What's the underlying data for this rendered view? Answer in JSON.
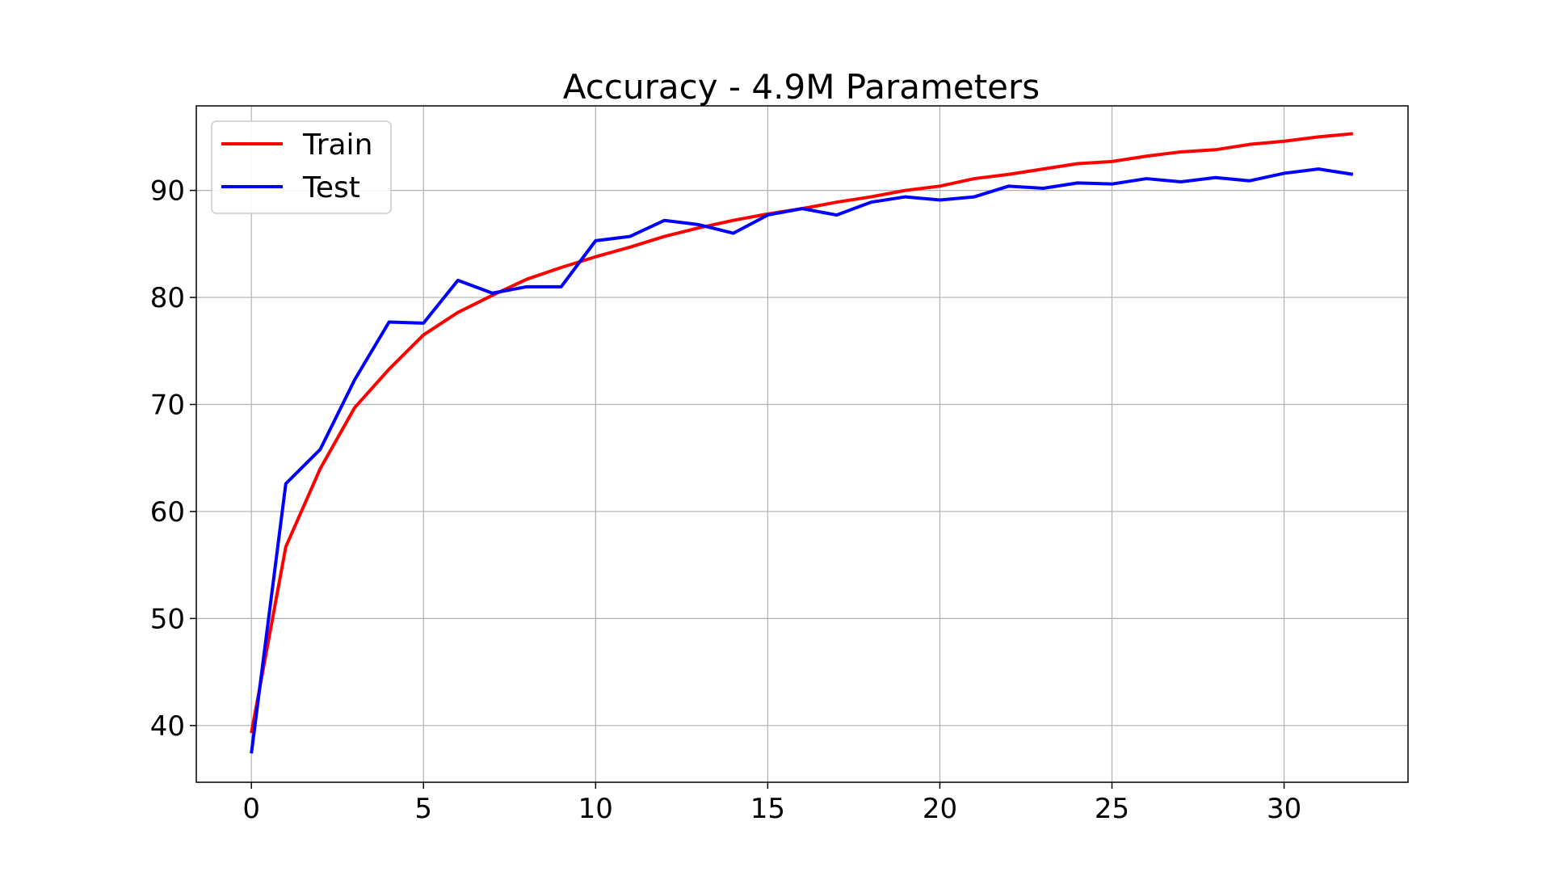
{
  "chart_data": {
    "type": "line",
    "title": "Accuracy - 4.9M Parameters",
    "xlabel": "",
    "ylabel": "",
    "xlim": [
      -1.6,
      33.6
    ],
    "ylim": [
      34.7,
      97.9
    ],
    "xticks": [
      0,
      5,
      10,
      15,
      20,
      25,
      30
    ],
    "yticks": [
      40,
      50,
      60,
      70,
      80,
      90
    ],
    "grid": true,
    "legend": "top-left",
    "x": [
      0,
      1,
      2,
      3,
      4,
      5,
      6,
      7,
      8,
      9,
      10,
      11,
      12,
      13,
      14,
      15,
      16,
      17,
      18,
      19,
      20,
      21,
      22,
      23,
      24,
      25,
      26,
      27,
      28,
      29,
      30,
      31,
      32
    ],
    "series": [
      {
        "name": "Train",
        "color": "#ff0000",
        "values": [
          39.3,
          56.7,
          64.0,
          69.7,
          73.3,
          76.5,
          78.6,
          80.2,
          81.7,
          82.8,
          83.8,
          84.7,
          85.7,
          86.5,
          87.2,
          87.8,
          88.3,
          88.9,
          89.4,
          90.0,
          90.4,
          91.1,
          91.5,
          92.0,
          92.5,
          92.7,
          93.2,
          93.6,
          93.8,
          94.3,
          94.6,
          95.0,
          95.3
        ]
      },
      {
        "name": "Test",
        "color": "#0000ff",
        "values": [
          37.4,
          62.6,
          65.8,
          72.3,
          77.7,
          77.6,
          81.6,
          80.4,
          81.0,
          81.0,
          85.3,
          85.7,
          87.2,
          86.8,
          86.0,
          87.7,
          88.3,
          87.7,
          88.9,
          89.4,
          89.1,
          89.4,
          90.4,
          90.2,
          90.7,
          90.6,
          91.1,
          90.8,
          91.2,
          90.9,
          91.6,
          92.0,
          91.5
        ]
      }
    ]
  }
}
